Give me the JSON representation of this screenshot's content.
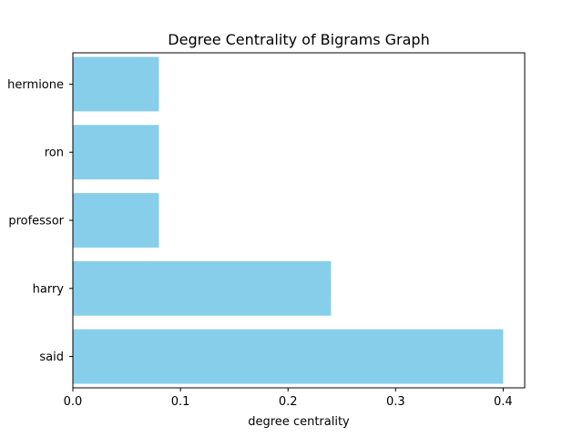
{
  "chart_data": {
    "type": "bar",
    "orientation": "horizontal",
    "title": "Degree Centrality of Bigrams Graph",
    "xlabel": "degree centrality",
    "ylabel": "",
    "categories": [
      "said",
      "harry",
      "professor",
      "ron",
      "hermione"
    ],
    "values": [
      0.4,
      0.24,
      0.08,
      0.08,
      0.08
    ],
    "xlim": [
      0,
      0.42
    ],
    "xticks": [
      0.0,
      0.1,
      0.2,
      0.3,
      0.4
    ],
    "xtick_labels": [
      "0.0",
      "0.1",
      "0.2",
      "0.3",
      "0.4"
    ],
    "bar_color": "#87ceeb",
    "grid": false,
    "legend": "none"
  }
}
